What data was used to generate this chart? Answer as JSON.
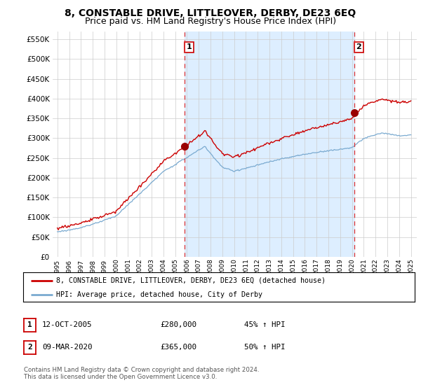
{
  "title": "8, CONSTABLE DRIVE, LITTLEOVER, DERBY, DE23 6EQ",
  "subtitle": "Price paid vs. HM Land Registry's House Price Index (HPI)",
  "ylim": [
    0,
    570000
  ],
  "yticks": [
    0,
    50000,
    100000,
    150000,
    200000,
    250000,
    300000,
    350000,
    400000,
    450000,
    500000,
    550000
  ],
  "xlim_start": 1994.6,
  "xlim_end": 2025.5,
  "sale1_x": 2005.79,
  "sale1_y": 280000,
  "sale2_x": 2020.19,
  "sale2_y": 365000,
  "sale1_label": "1",
  "sale2_label": "2",
  "property_color": "#cc0000",
  "hpi_color": "#7aaad0",
  "shade_color": "#ddeeff",
  "legend_property": "8, CONSTABLE DRIVE, LITTLEOVER, DERBY, DE23 6EQ (detached house)",
  "legend_hpi": "HPI: Average price, detached house, City of Derby",
  "table_row1": [
    "1",
    "12-OCT-2005",
    "£280,000",
    "45% ↑ HPI"
  ],
  "table_row2": [
    "2",
    "09-MAR-2020",
    "£365,000",
    "50% ↑ HPI"
  ],
  "footnote": "Contains HM Land Registry data © Crown copyright and database right 2024.\nThis data is licensed under the Open Government Licence v3.0.",
  "background_color": "#ffffff",
  "grid_color": "#cccccc",
  "title_fontsize": 10,
  "subtitle_fontsize": 9
}
